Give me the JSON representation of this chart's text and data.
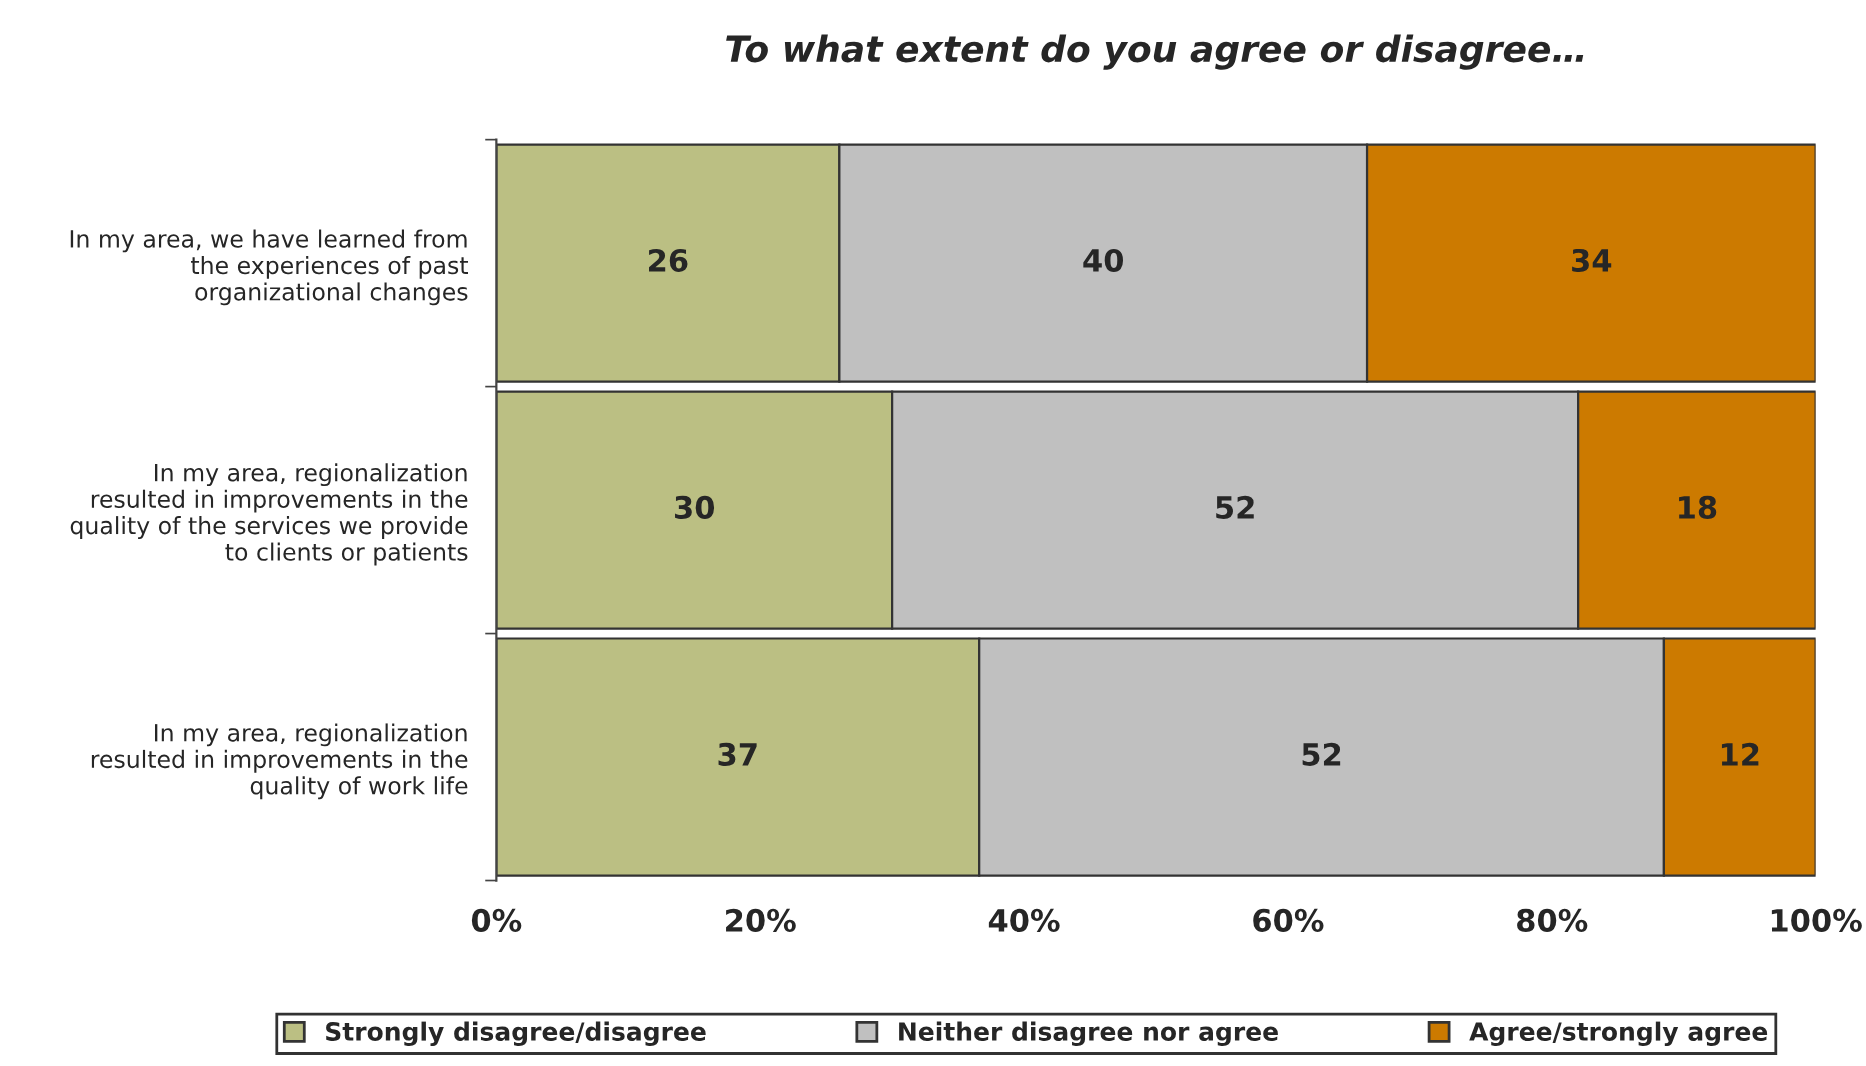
{
  "chart_data": {
    "type": "bar",
    "orientation": "horizontal",
    "stacked": true,
    "title": "To what extent do you agree or disagree…",
    "categories": [
      "In my area, we have learned from\nthe experiences of past\norganizational changes",
      "In my area, regionalization\nresulted in improvements in the\nquality of the services we provide\nto clients or patients",
      "In my area, regionalization\nresulted in improvements in the\nquality of work life"
    ],
    "series": [
      {
        "name": "Strongly disagree/disagree",
        "color": "#bbbf83",
        "values": [
          26,
          30,
          36.6
        ],
        "value_labels": [
          "26",
          "30",
          "37"
        ]
      },
      {
        "name": "Neither disagree nor agree",
        "color": "#c0c0c0",
        "values": [
          40,
          52,
          51.9
        ],
        "value_labels": [
          "40",
          "52",
          "52"
        ]
      },
      {
        "name": "Agree/strongly agree",
        "color": "#cc7a00",
        "values": [
          34,
          18,
          11.5
        ],
        "value_labels": [
          "34",
          "18",
          "12"
        ]
      }
    ],
    "xlim": [
      0,
      100
    ],
    "xticks": [
      {
        "value": 0,
        "label": "0%"
      },
      {
        "value": 20,
        "label": "20%"
      },
      {
        "value": 40,
        "label": "40%"
      },
      {
        "value": 60,
        "label": "60%"
      },
      {
        "value": 80,
        "label": "80%"
      },
      {
        "value": 100,
        "label": "100%"
      }
    ],
    "grid": false,
    "legend": "bottom"
  }
}
